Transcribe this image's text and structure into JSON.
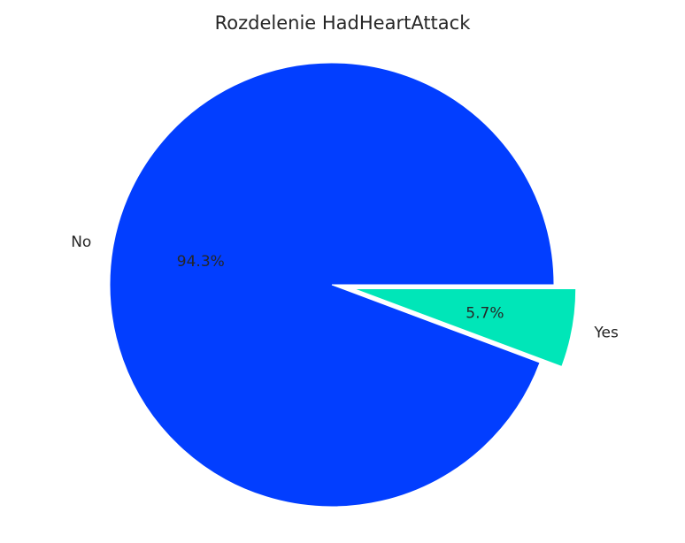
{
  "chart_data": {
    "type": "pie",
    "title": "Rozdelenie HadHeartAttack",
    "slices": [
      {
        "label": "No",
        "value": 94.3,
        "pct_label": "94.3%",
        "color": "#023EFF",
        "explode": 0
      },
      {
        "label": "Yes",
        "value": 5.7,
        "pct_label": "5.7%",
        "color": "#00E6B8",
        "explode": 0.1
      }
    ],
    "start_angle_deg": 0,
    "direction": "counterclockwise",
    "edge_color": "#FFFFFF"
  }
}
